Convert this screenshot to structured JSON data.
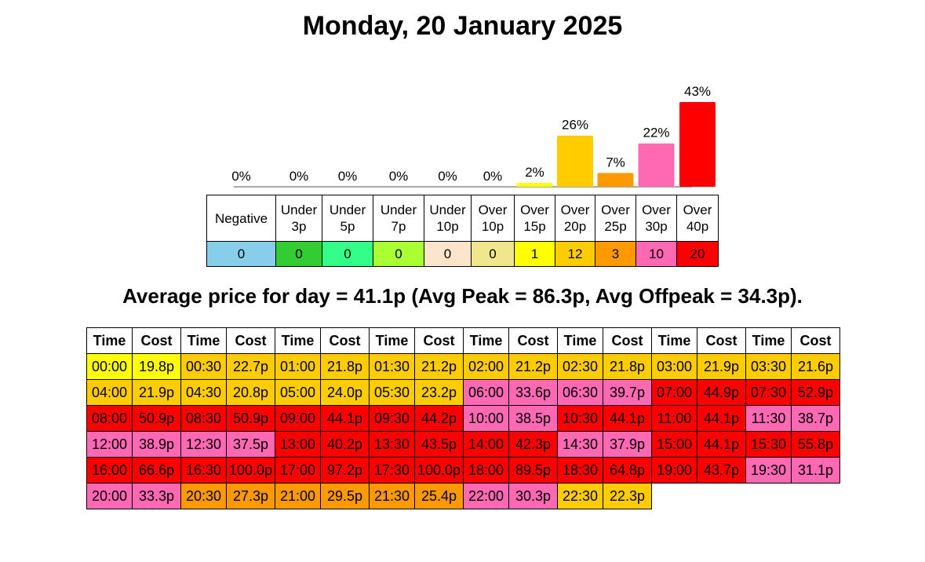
{
  "title": "Monday, 20 January 2025",
  "chart_data": {
    "type": "bar",
    "categories": [
      "Negative",
      "Under 3p",
      "Under 5p",
      "Under 7p",
      "Under 10p",
      "Over 10p",
      "Over 15p",
      "Over 20p",
      "Over 25p",
      "Over 30p",
      "Over 40p"
    ],
    "values": [
      0,
      0,
      0,
      0,
      0,
      0,
      2,
      26,
      7,
      22,
      43
    ],
    "value_labels": [
      "0%",
      "0%",
      "0%",
      "0%",
      "0%",
      "0%",
      "2%",
      "26%",
      "7%",
      "22%",
      "43%"
    ],
    "colors": [
      "#87ceeb",
      "#33cc33",
      "#33ff88",
      "#aaff33",
      "#fde5cc",
      "#f0e68c",
      "#ffff00",
      "#ffcc00",
      "#ff9900",
      "#ff69b4",
      "#ff0000"
    ]
  },
  "band_table": {
    "counts": [
      0,
      0,
      0,
      0,
      0,
      0,
      1,
      12,
      3,
      10,
      20
    ]
  },
  "summary": "Average price for day = 41.1p (Avg Peak = 86.3p, Avg Offpeak = 34.3p).",
  "price_table": {
    "header": [
      "Time",
      "Cost"
    ],
    "slots": [
      {
        "time": "00:00",
        "cost": "19.8p",
        "color": "#ffff00"
      },
      {
        "time": "00:30",
        "cost": "22.7p",
        "color": "#ffcc00"
      },
      {
        "time": "01:00",
        "cost": "21.8p",
        "color": "#ffcc00"
      },
      {
        "time": "01:30",
        "cost": "21.2p",
        "color": "#ffcc00"
      },
      {
        "time": "02:00",
        "cost": "21.2p",
        "color": "#ffcc00"
      },
      {
        "time": "02:30",
        "cost": "21.8p",
        "color": "#ffcc00"
      },
      {
        "time": "03:00",
        "cost": "21.9p",
        "color": "#ffcc00"
      },
      {
        "time": "03:30",
        "cost": "21.6p",
        "color": "#ffcc00"
      },
      {
        "time": "04:00",
        "cost": "21.9p",
        "color": "#ffcc00"
      },
      {
        "time": "04:30",
        "cost": "20.8p",
        "color": "#ffcc00"
      },
      {
        "time": "05:00",
        "cost": "24.0p",
        "color": "#ffcc00"
      },
      {
        "time": "05:30",
        "cost": "23.2p",
        "color": "#ffcc00"
      },
      {
        "time": "06:00",
        "cost": "33.6p",
        "color": "#ff69b4"
      },
      {
        "time": "06:30",
        "cost": "39.7p",
        "color": "#ff69b4"
      },
      {
        "time": "07:00",
        "cost": "44.9p",
        "color": "#ff0000"
      },
      {
        "time": "07:30",
        "cost": "52.9p",
        "color": "#ff0000"
      },
      {
        "time": "08:00",
        "cost": "50.9p",
        "color": "#ff0000"
      },
      {
        "time": "08:30",
        "cost": "50.9p",
        "color": "#ff0000"
      },
      {
        "time": "09:00",
        "cost": "44.1p",
        "color": "#ff0000"
      },
      {
        "time": "09:30",
        "cost": "44.2p",
        "color": "#ff0000"
      },
      {
        "time": "10:00",
        "cost": "38.5p",
        "color": "#ff69b4"
      },
      {
        "time": "10:30",
        "cost": "44.1p",
        "color": "#ff0000"
      },
      {
        "time": "11:00",
        "cost": "44.1p",
        "color": "#ff0000"
      },
      {
        "time": "11:30",
        "cost": "38.7p",
        "color": "#ff69b4"
      },
      {
        "time": "12:00",
        "cost": "38.9p",
        "color": "#ff69b4"
      },
      {
        "time": "12:30",
        "cost": "37.5p",
        "color": "#ff69b4"
      },
      {
        "time": "13:00",
        "cost": "40.2p",
        "color": "#ff0000"
      },
      {
        "time": "13:30",
        "cost": "43.5p",
        "color": "#ff0000"
      },
      {
        "time": "14:00",
        "cost": "42.3p",
        "color": "#ff0000"
      },
      {
        "time": "14:30",
        "cost": "37.9p",
        "color": "#ff69b4"
      },
      {
        "time": "15:00",
        "cost": "44.1p",
        "color": "#ff0000"
      },
      {
        "time": "15:30",
        "cost": "55.8p",
        "color": "#ff0000"
      },
      {
        "time": "16:00",
        "cost": "66.6p",
        "color": "#ff0000"
      },
      {
        "time": "16:30",
        "cost": "100.0p",
        "color": "#ff0000"
      },
      {
        "time": "17:00",
        "cost": "97.2p",
        "color": "#ff0000"
      },
      {
        "time": "17:30",
        "cost": "100.0p",
        "color": "#ff0000"
      },
      {
        "time": "18:00",
        "cost": "89.5p",
        "color": "#ff0000"
      },
      {
        "time": "18:30",
        "cost": "64.8p",
        "color": "#ff0000"
      },
      {
        "time": "19:00",
        "cost": "43.7p",
        "color": "#ff0000"
      },
      {
        "time": "19:30",
        "cost": "31.1p",
        "color": "#ff69b4"
      },
      {
        "time": "20:00",
        "cost": "33.3p",
        "color": "#ff69b4"
      },
      {
        "time": "20:30",
        "cost": "27.3p",
        "color": "#ff9900"
      },
      {
        "time": "21:00",
        "cost": "29.5p",
        "color": "#ff9900"
      },
      {
        "time": "21:30",
        "cost": "25.4p",
        "color": "#ff9900"
      },
      {
        "time": "22:00",
        "cost": "30.3p",
        "color": "#ff69b4"
      },
      {
        "time": "22:30",
        "cost": "22.3p",
        "color": "#ffcc00"
      }
    ]
  }
}
